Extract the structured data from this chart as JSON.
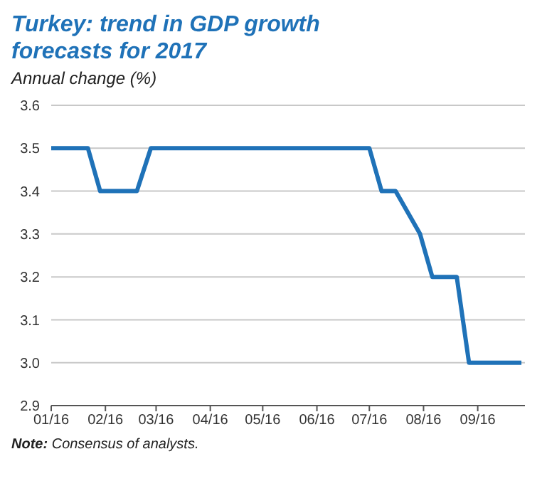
{
  "chart_data": {
    "type": "line",
    "title": "Turkey: trend in GDP growth forecasts for 2017",
    "ylabel": "Annual change (%)",
    "x": [
      "2016-01-01",
      "2016-01-22",
      "2016-01-29",
      "2016-02-19",
      "2016-02-27",
      "2016-07-01",
      "2016-07-08",
      "2016-07-16",
      "2016-07-30",
      "2016-08-06",
      "2016-08-20",
      "2016-08-27",
      "2016-09-26"
    ],
    "series": [
      {
        "color": "#1f72b8",
        "values": [
          3.5,
          3.5,
          3.4,
          3.4,
          3.5,
          3.5,
          3.4,
          3.4,
          3.3,
          3.2,
          3.2,
          3.0,
          3.0
        ]
      }
    ],
    "xlim": [
      "2016-01-01",
      "2016-09-28"
    ],
    "xticks": [
      {
        "value": "2016-01-01",
        "label": "01/16"
      },
      {
        "value": "2016-02-01",
        "label": "02/16"
      },
      {
        "value": "2016-03-01",
        "label": "03/16"
      },
      {
        "value": "2016-04-01",
        "label": "04/16"
      },
      {
        "value": "2016-05-01",
        "label": "05/16"
      },
      {
        "value": "2016-06-01",
        "label": "06/16"
      },
      {
        "value": "2016-07-01",
        "label": "07/16"
      },
      {
        "value": "2016-08-01",
        "label": "08/16"
      },
      {
        "value": "2016-09-01",
        "label": "09/16"
      }
    ],
    "ylim": [
      2.9,
      3.6
    ],
    "yticks": [
      {
        "value": 2.9,
        "label": "2.9"
      },
      {
        "value": 3.0,
        "label": "3.0"
      },
      {
        "value": 3.1,
        "label": "3.1"
      },
      {
        "value": 3.2,
        "label": "3.2"
      },
      {
        "value": 3.3,
        "label": "3.3"
      },
      {
        "value": 3.4,
        "label": "3.4"
      },
      {
        "value": 3.5,
        "label": "3.5"
      },
      {
        "value": 3.6,
        "label": "3.6"
      }
    ],
    "grid": "y",
    "legend": false,
    "marker": "none",
    "line_style": "solid",
    "annotations": [
      "Note: Consensus of analysts."
    ]
  }
}
